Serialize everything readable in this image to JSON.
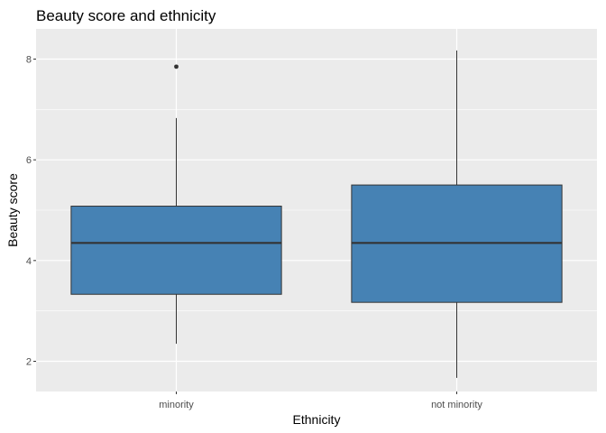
{
  "chart_data": {
    "type": "boxplot",
    "title": "Beauty score and ethnicity",
    "xlabel": "Ethnicity",
    "ylabel": "Beauty score",
    "categories": [
      "minority",
      "not minority"
    ],
    "ylim": [
      1.4,
      8.6
    ],
    "yticks": [
      2,
      4,
      6,
      8
    ],
    "boxes": [
      {
        "category": "minority",
        "whisker_low": 2.35,
        "q1": 3.33,
        "median": 4.35,
        "q3": 5.08,
        "whisker_high": 6.83,
        "outliers": [
          7.85
        ]
      },
      {
        "category": "not minority",
        "whisker_low": 1.67,
        "q1": 3.17,
        "median": 4.35,
        "q3": 5.5,
        "whisker_high": 8.17,
        "outliers": []
      }
    ],
    "colors": {
      "box_fill": "#4682B4",
      "panel_background": "#EBEBEB",
      "grid": "#FFFFFF",
      "outline": "#333333"
    },
    "grid": true,
    "legend": "none"
  }
}
